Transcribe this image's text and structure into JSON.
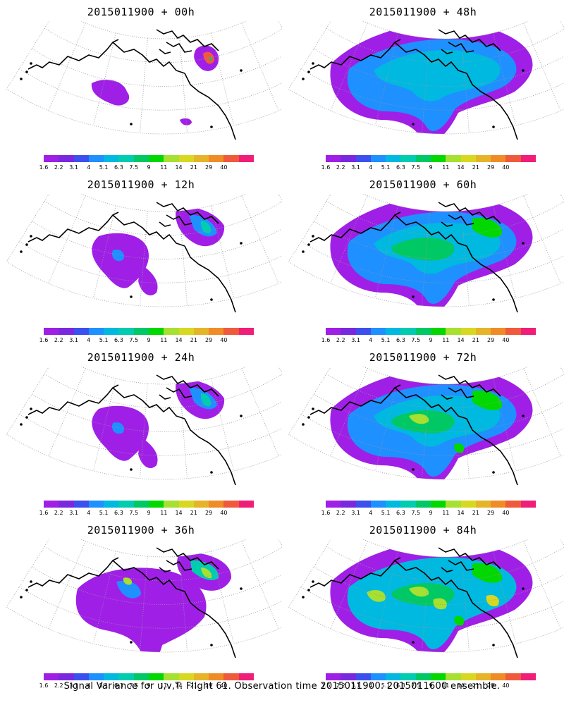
{
  "panels": [
    {
      "title": "2015011900 + 00h",
      "level": 0
    },
    {
      "title": "2015011900 + 48h",
      "level": 3
    },
    {
      "title": "2015011900 + 12h",
      "level": 1
    },
    {
      "title": "2015011900 + 60h",
      "level": 4
    },
    {
      "title": "2015011900 + 24h",
      "level": 1
    },
    {
      "title": "2015011900 + 72h",
      "level": 5
    },
    {
      "title": "2015011900 + 36h",
      "level": 2
    },
    {
      "title": "2015011900 + 84h",
      "level": 6
    }
  ],
  "colorbar": {
    "colors": [
      "#a01fe6",
      "#7a28e0",
      "#3c50f0",
      "#1e90ff",
      "#00b9e0",
      "#00ccb0",
      "#00c864",
      "#00d800",
      "#a6e030",
      "#d8d820",
      "#e6b428",
      "#f08c28",
      "#f05a3c",
      "#f01e78"
    ],
    "labels": [
      "1.6",
      "2.2",
      "3.1",
      "4",
      "5.1",
      "6.3",
      "7.5",
      "9",
      "11",
      "14",
      "21",
      "29",
      "40"
    ]
  },
  "footer": "Signal Variance for u,v,T. Flight 61. Observation time 2015011900. 2015011600 ensemble."
}
